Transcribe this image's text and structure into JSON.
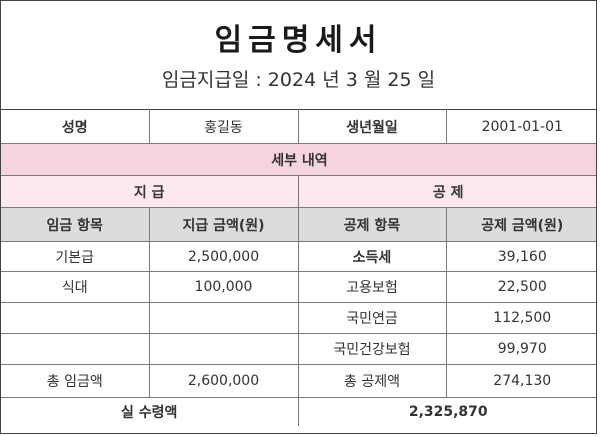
{
  "document": {
    "title": "임금명세서",
    "pay_date": "임금지급일 : 2024 년 3 월 25 일"
  },
  "employee": {
    "name_label": "성명",
    "name": "홍길동",
    "birth_label": "생년월일",
    "birth": "2001-01-01"
  },
  "details": {
    "header": "세부 내역",
    "payment_header": "지 급",
    "deduction_header": "공 제"
  },
  "columns": {
    "pay_item": "임금 항목",
    "pay_amount": "지급 금액(원)",
    "deduction_item": "공제 항목",
    "deduction_amount": "공제 금액(원)"
  },
  "rows": [
    {
      "pay_item": "기본급",
      "pay_amount": "2,500,000",
      "deduction_item": "소득세",
      "deduction_amount": "39,160"
    },
    {
      "pay_item": "식대",
      "pay_amount": "100,000",
      "deduction_item": "고용보험",
      "deduction_amount": "22,500"
    },
    {
      "pay_item": "",
      "pay_amount": "",
      "deduction_item": "국민연금",
      "deduction_amount": "112,500"
    },
    {
      "pay_item": "",
      "pay_amount": "",
      "deduction_item": "국민건강보험",
      "deduction_amount": "99,970"
    }
  ],
  "totals": {
    "pay_label": "총 임금액",
    "pay_value": "2,600,000",
    "deduction_label": "총 공제액",
    "deduction_value": "274,130"
  },
  "net": {
    "label": "실 수령액",
    "value": "2,325,870"
  },
  "colors": {
    "section_header": "#f6d4df",
    "sub_header": "#fbe9ef",
    "column_header": "#dcdcdc",
    "accent_text": "#2f6fb3"
  }
}
